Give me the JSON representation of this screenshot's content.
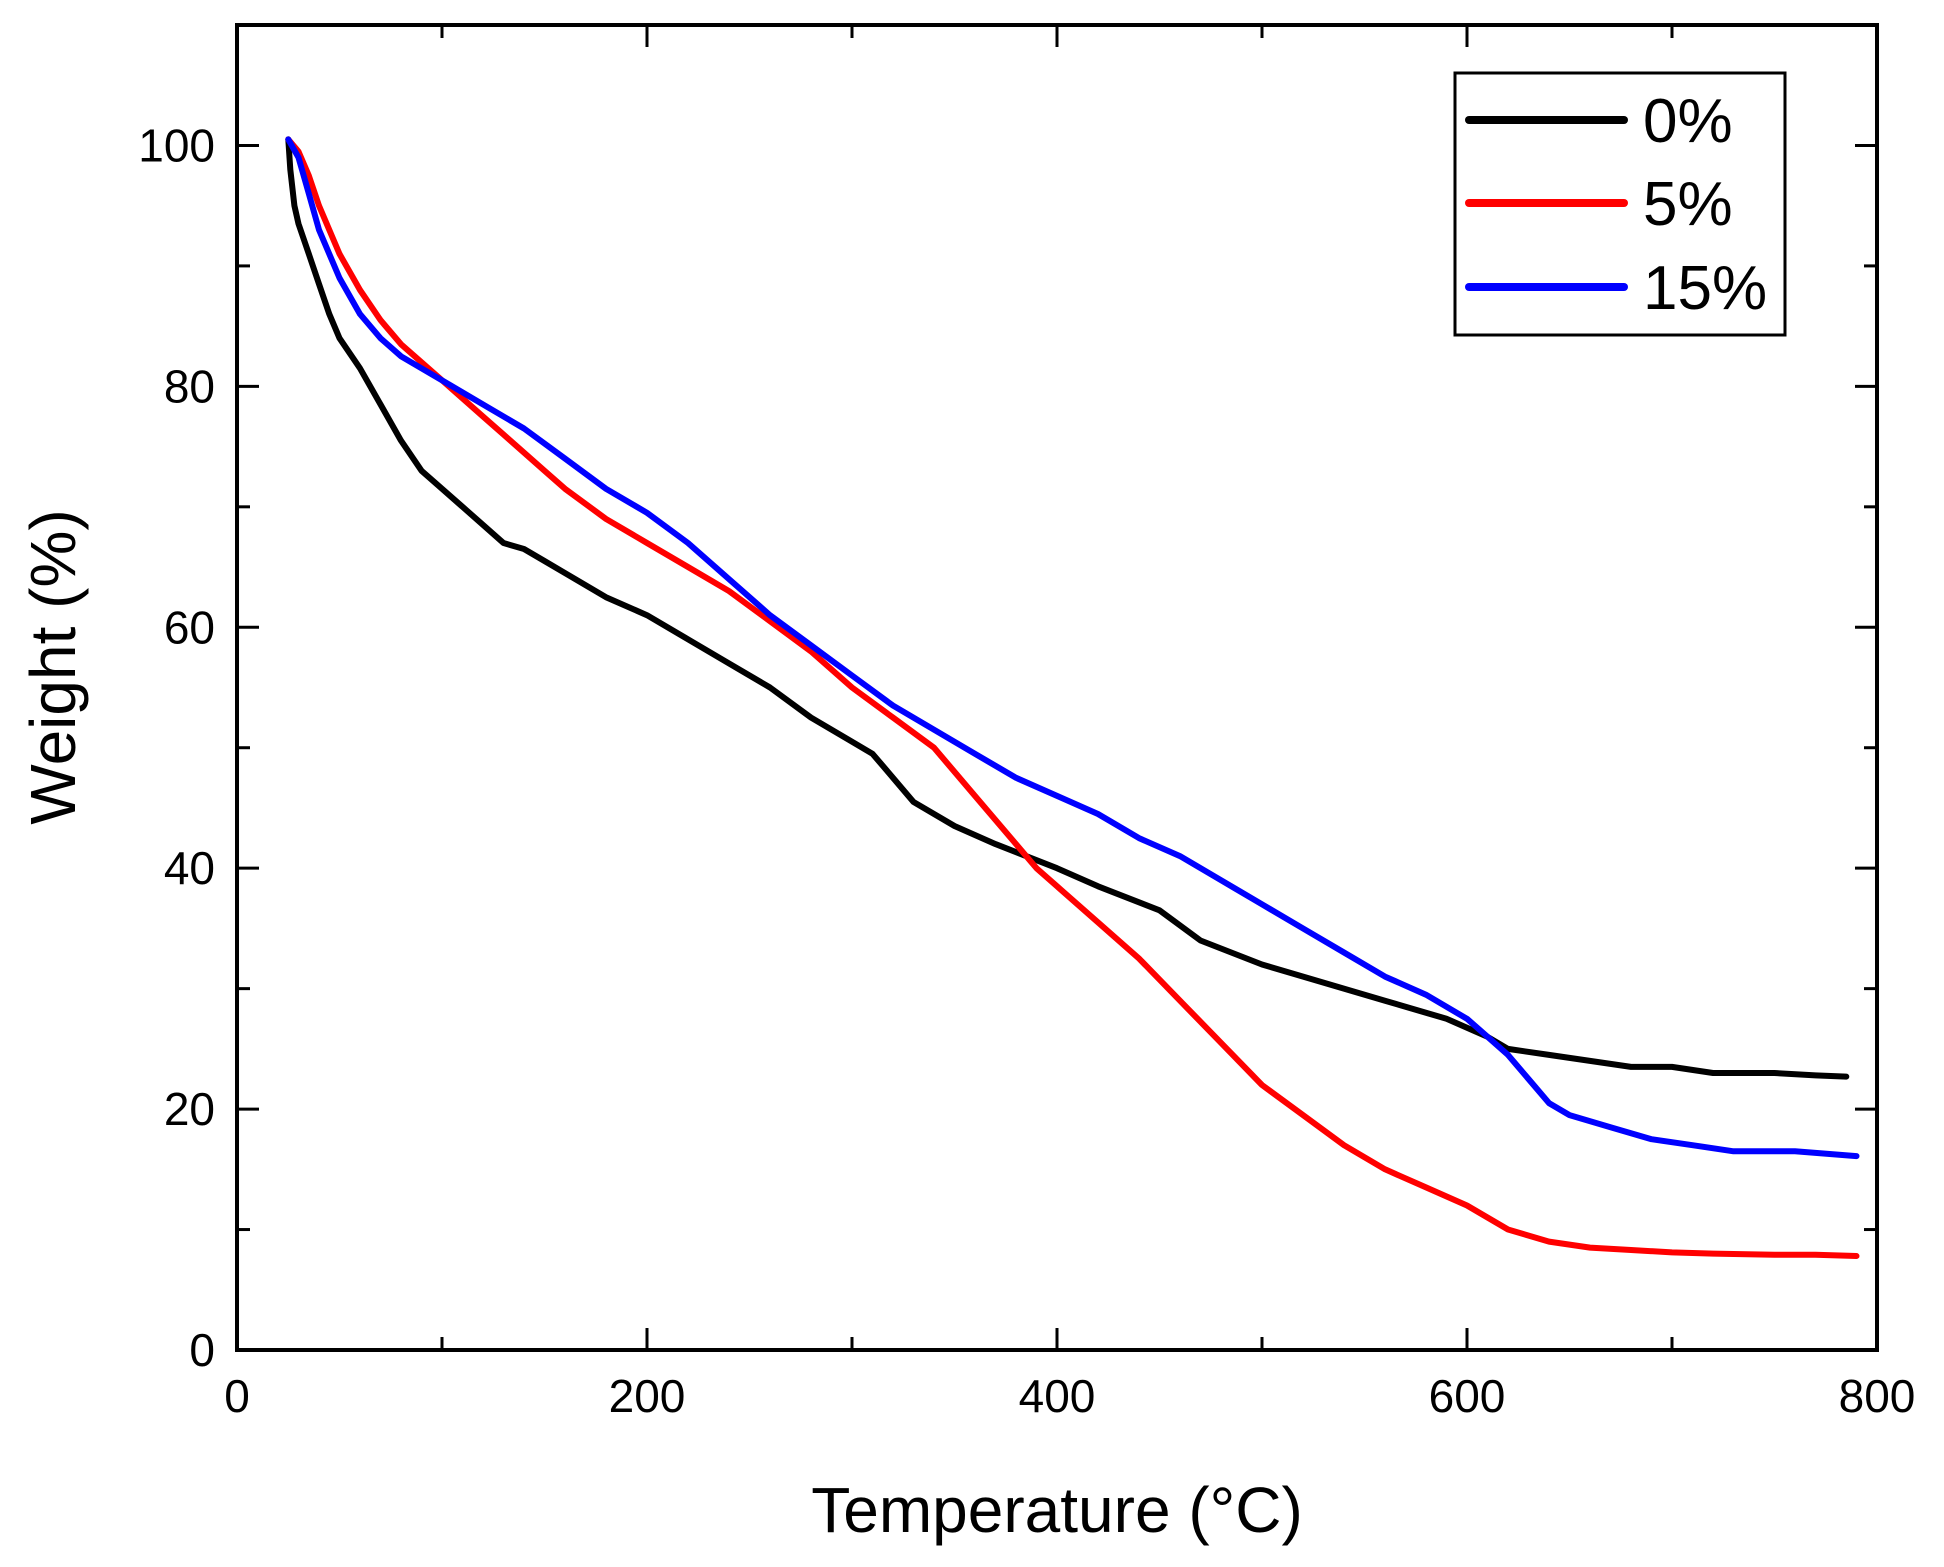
{
  "chart_data": {
    "type": "line",
    "title": "",
    "xlabel": "Temperature (°C)",
    "ylabel": "Weight (%)",
    "xlim": [
      0,
      800
    ],
    "ylim": [
      0,
      110
    ],
    "xticks": [
      0,
      200,
      400,
      600,
      800
    ],
    "yticks": [
      0,
      20,
      40,
      60,
      80,
      100
    ],
    "x_minor_step": 100,
    "y_minor_step": 10,
    "grid": false,
    "legend_position": "top-right",
    "series": [
      {
        "name": "0%",
        "color": "#000000",
        "x": [
          25,
          26,
          28,
          30,
          35,
          40,
          45,
          50,
          60,
          70,
          80,
          90,
          100,
          110,
          120,
          130,
          140,
          150,
          160,
          180,
          200,
          220,
          240,
          260,
          280,
          300,
          310,
          315,
          320,
          325,
          330,
          350,
          370,
          400,
          420,
          450,
          470,
          500,
          530,
          560,
          590,
          610,
          620,
          640,
          660,
          680,
          700,
          720,
          750,
          770,
          785
        ],
        "y": [
          100.5,
          98,
          95,
          93.5,
          91,
          88.5,
          86,
          84,
          81.5,
          78.5,
          75.5,
          73,
          71.5,
          70,
          68.5,
          67,
          66.5,
          65.5,
          64.5,
          62.5,
          61,
          59,
          57,
          55,
          52.5,
          50.5,
          49.5,
          48.5,
          47.5,
          46.5,
          45.5,
          43.5,
          42,
          40,
          38.5,
          36.5,
          34,
          32,
          30.5,
          29,
          27.5,
          26,
          25,
          24.5,
          24,
          23.5,
          23.5,
          23,
          23,
          22.8,
          22.7
        ]
      },
      {
        "name": "5%",
        "color": "#ff0000",
        "x": [
          25,
          30,
          35,
          40,
          50,
          60,
          70,
          80,
          90,
          100,
          110,
          120,
          130,
          140,
          150,
          160,
          180,
          200,
          220,
          240,
          260,
          280,
          300,
          320,
          340,
          360,
          380,
          390,
          400,
          420,
          440,
          460,
          480,
          500,
          520,
          540,
          560,
          580,
          600,
          610,
          620,
          640,
          660,
          680,
          700,
          720,
          750,
          770,
          790
        ],
        "y": [
          100.5,
          99.5,
          97.5,
          95,
          91,
          88,
          85.5,
          83.5,
          82,
          80.5,
          79,
          77.5,
          76,
          74.5,
          73,
          71.5,
          69,
          67,
          65,
          63,
          60.5,
          58,
          55,
          52.5,
          50,
          46,
          42,
          40,
          38.5,
          35.5,
          32.5,
          29,
          25.5,
          22,
          19.5,
          17,
          15,
          13.5,
          12,
          11,
          10,
          9,
          8.5,
          8.3,
          8.1,
          8,
          7.9,
          7.9,
          7.8
        ]
      },
      {
        "name": "15%",
        "color": "#0000ff",
        "x": [
          25,
          30,
          35,
          40,
          50,
          60,
          70,
          80,
          90,
          100,
          120,
          140,
          160,
          180,
          200,
          220,
          240,
          260,
          280,
          300,
          320,
          340,
          360,
          380,
          400,
          420,
          440,
          460,
          480,
          500,
          520,
          540,
          560,
          580,
          600,
          610,
          620,
          630,
          640,
          650,
          670,
          690,
          710,
          730,
          760,
          790
        ],
        "y": [
          100.5,
          99,
          96,
          93,
          89,
          86,
          84,
          82.5,
          81.5,
          80.5,
          78.5,
          76.5,
          74,
          71.5,
          69.5,
          67,
          64,
          61,
          58.5,
          56,
          53.5,
          51.5,
          49.5,
          47.5,
          46,
          44.5,
          42.5,
          41,
          39,
          37,
          35,
          33,
          31,
          29.5,
          27.5,
          26,
          24.5,
          22.5,
          20.5,
          19.5,
          18.5,
          17.5,
          17,
          16.5,
          16.5,
          16.1
        ]
      }
    ]
  }
}
